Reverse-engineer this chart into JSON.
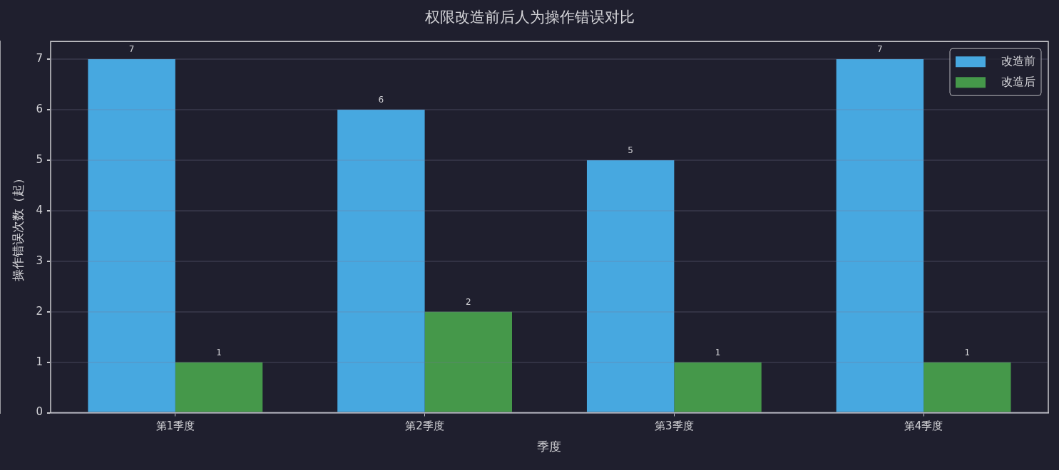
{
  "chart_data": {
    "type": "bar",
    "title": "权限改造前后人为操作错误对比",
    "xlabel": "季度",
    "ylabel": "操作错误次数（起）",
    "categories": [
      "第1季度",
      "第2季度",
      "第3季度",
      "第4季度"
    ],
    "series": [
      {
        "name": "改造前",
        "color": "#47a8e0",
        "values": [
          7,
          6,
          5,
          7
        ]
      },
      {
        "name": "改造后",
        "color": "#45984a",
        "values": [
          1,
          2,
          1,
          1
        ]
      }
    ],
    "ylim": [
      0,
      7.35
    ],
    "yticks": [
      0,
      1,
      2,
      3,
      4,
      5,
      6,
      7
    ],
    "grid": "y",
    "legend": "top right",
    "data_labels": true
  }
}
